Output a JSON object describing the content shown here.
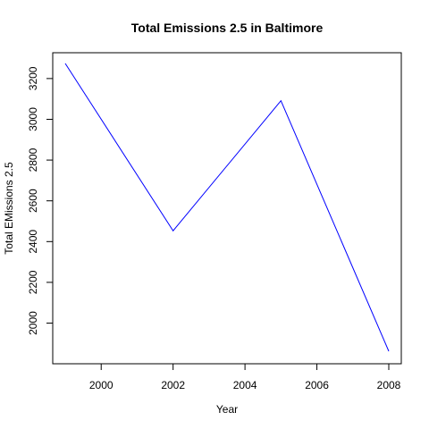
{
  "chart_data": {
    "type": "line",
    "title": "Total Emissions 2.5 in Baltimore",
    "xlabel": "Year",
    "ylabel": "Total EMissions 2.5",
    "xlim": [
      1999,
      2008
    ],
    "ylim": [
      1862,
      3274
    ],
    "x_ticks": [
      2000,
      2002,
      2004,
      2006,
      2008
    ],
    "y_ticks": [
      2000,
      2200,
      2400,
      2600,
      2800,
      3000,
      3200
    ],
    "series": [
      {
        "color": "#0000ff",
        "x": [
          1999,
          2002,
          2005,
          2008
        ],
        "y": [
          3274,
          2453,
          3091,
          1862
        ]
      }
    ],
    "grid": false,
    "legend": "none"
  }
}
